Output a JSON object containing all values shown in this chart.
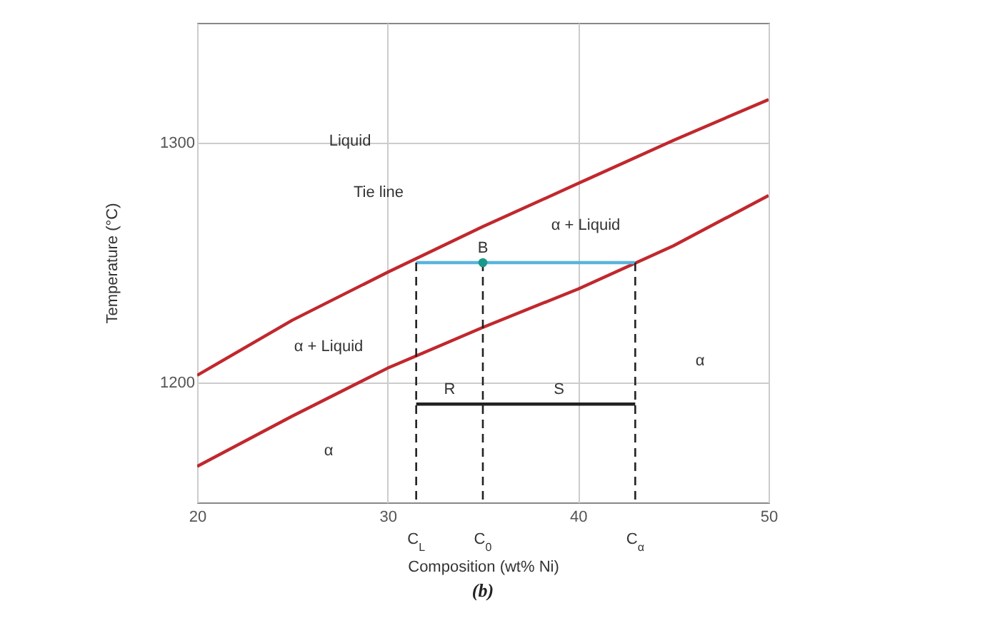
{
  "chart_data": {
    "type": "line",
    "xlabel": "Composition (wt% Ni)",
    "ylabel": "Temperature (°C)",
    "xlim": [
      20,
      50
    ],
    "ylim": [
      1150,
      1350
    ],
    "xticks": [
      20,
      30,
      40,
      50
    ],
    "yticks": [
      1200,
      1300
    ],
    "grid": true,
    "series": [
      {
        "x": [
          20,
          25,
          30,
          35,
          40,
          45,
          50
        ],
        "values": [
          1203,
          1226,
          1246,
          1265,
          1283,
          1301,
          1318
        ],
        "color": "#c0282d"
      },
      {
        "x": [
          20,
          25,
          30,
          35,
          40,
          45,
          50
        ],
        "values": [
          1165,
          1186,
          1206,
          1223,
          1239,
          1257,
          1278
        ],
        "color": "#c0282d"
      },
      {
        "x": [
          31.5,
          43
        ],
        "values": [
          1250,
          1250
        ],
        "color": "#5ab4dc"
      },
      {
        "x": [
          31.5,
          31.5
        ],
        "values": [
          1250,
          1150
        ],
        "color": "#222222",
        "line_style": "dashed"
      },
      {
        "x": [
          35,
          35
        ],
        "values": [
          1250,
          1150
        ],
        "color": "#222222",
        "line_style": "dashed"
      },
      {
        "x": [
          43,
          43
        ],
        "values": [
          1250,
          1150
        ],
        "color": "#222222",
        "line_style": "dashed"
      },
      {
        "x": [
          31.5,
          35,
          43
        ],
        "values": [
          1191,
          1191,
          1191
        ],
        "color": "#222222"
      },
      {
        "type": "scatter",
        "x": [
          35
        ],
        "values": [
          1250
        ],
        "color": "#1a9a8a",
        "marker": "circle"
      }
    ],
    "annotations": [
      "Liquid",
      "Tie line",
      {
        "text": "B",
        "x": 35,
        "y": 1250
      },
      "α + Liquid",
      "α + Liquid",
      "α",
      "α",
      {
        "text": "R",
        "x": 33.25,
        "y": 1191
      },
      {
        "text": "S",
        "x": 39,
        "y": 1191
      },
      {
        "text": "C$_{L}$",
        "x": 31.5,
        "y": 1150
      },
      {
        "text": "C$_{0}$",
        "x": 35,
        "y": 1150
      },
      {
        "text": "C$_{α}$",
        "x": 43,
        "y": 1150
      },
      "(b)"
    ]
  }
}
